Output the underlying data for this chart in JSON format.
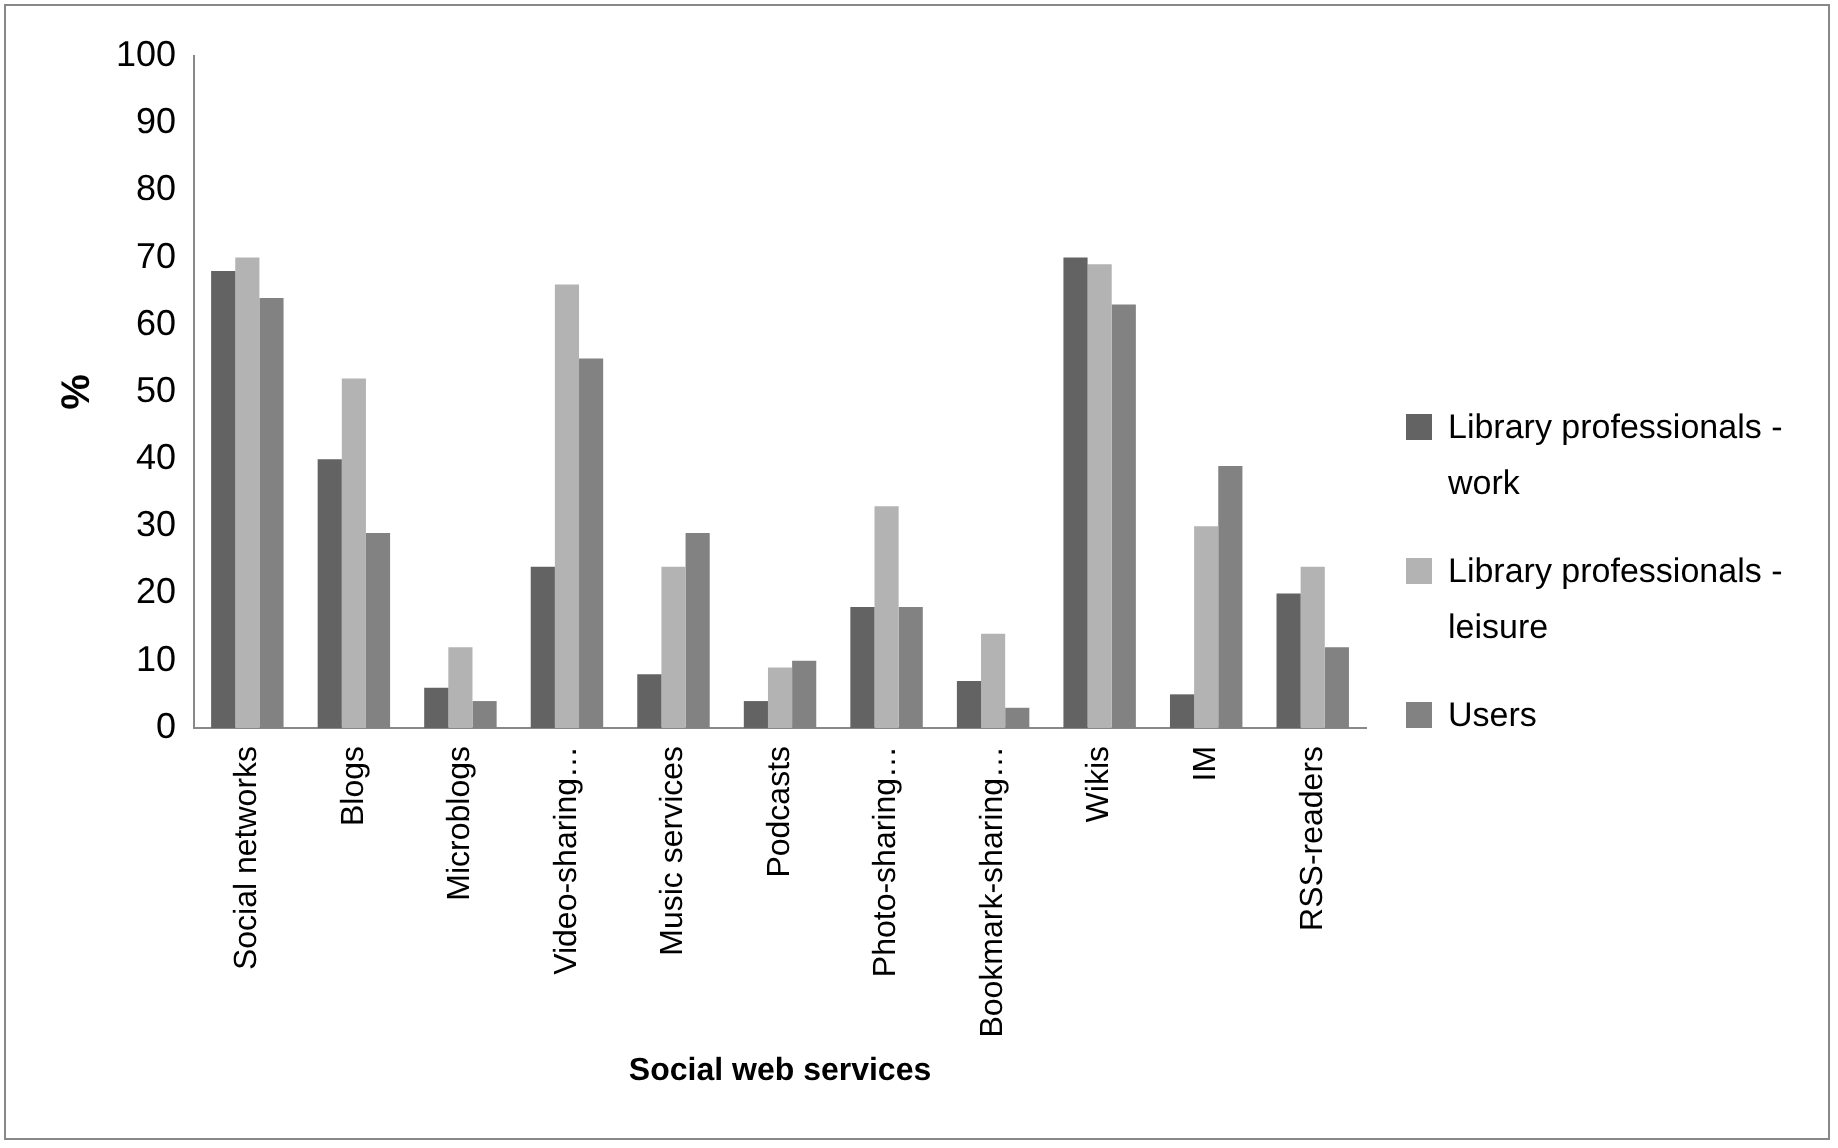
{
  "chart_data": {
    "type": "bar",
    "xlabel": "Social web services",
    "ylabel": "%",
    "categories": [
      "Social networks",
      "Blogs",
      "Microblogs",
      "Video-sharing…",
      "Music services",
      "Podcasts",
      "Photo-sharing…",
      "Bookmark-sharing…",
      "Wikis",
      "IM",
      "RSS-readers"
    ],
    "series": [
      {
        "name": "Library professionals - work",
        "color": "#636363",
        "values": [
          68,
          40,
          6,
          24,
          8,
          4,
          18,
          7,
          70,
          5,
          20
        ]
      },
      {
        "name": "Library professionals - leisure",
        "color": "#b3b3b3",
        "values": [
          70,
          52,
          12,
          66,
          24,
          9,
          33,
          14,
          69,
          30,
          24
        ]
      },
      {
        "name": "Users",
        "color": "#828282",
        "values": [
          64,
          29,
          4,
          55,
          29,
          10,
          18,
          3,
          63,
          39,
          12
        ]
      }
    ],
    "ylim": [
      0,
      100
    ],
    "yticks": [
      0,
      10,
      20,
      30,
      40,
      50,
      60,
      70,
      80,
      90,
      100
    ],
    "grid": false,
    "legend": "right"
  }
}
